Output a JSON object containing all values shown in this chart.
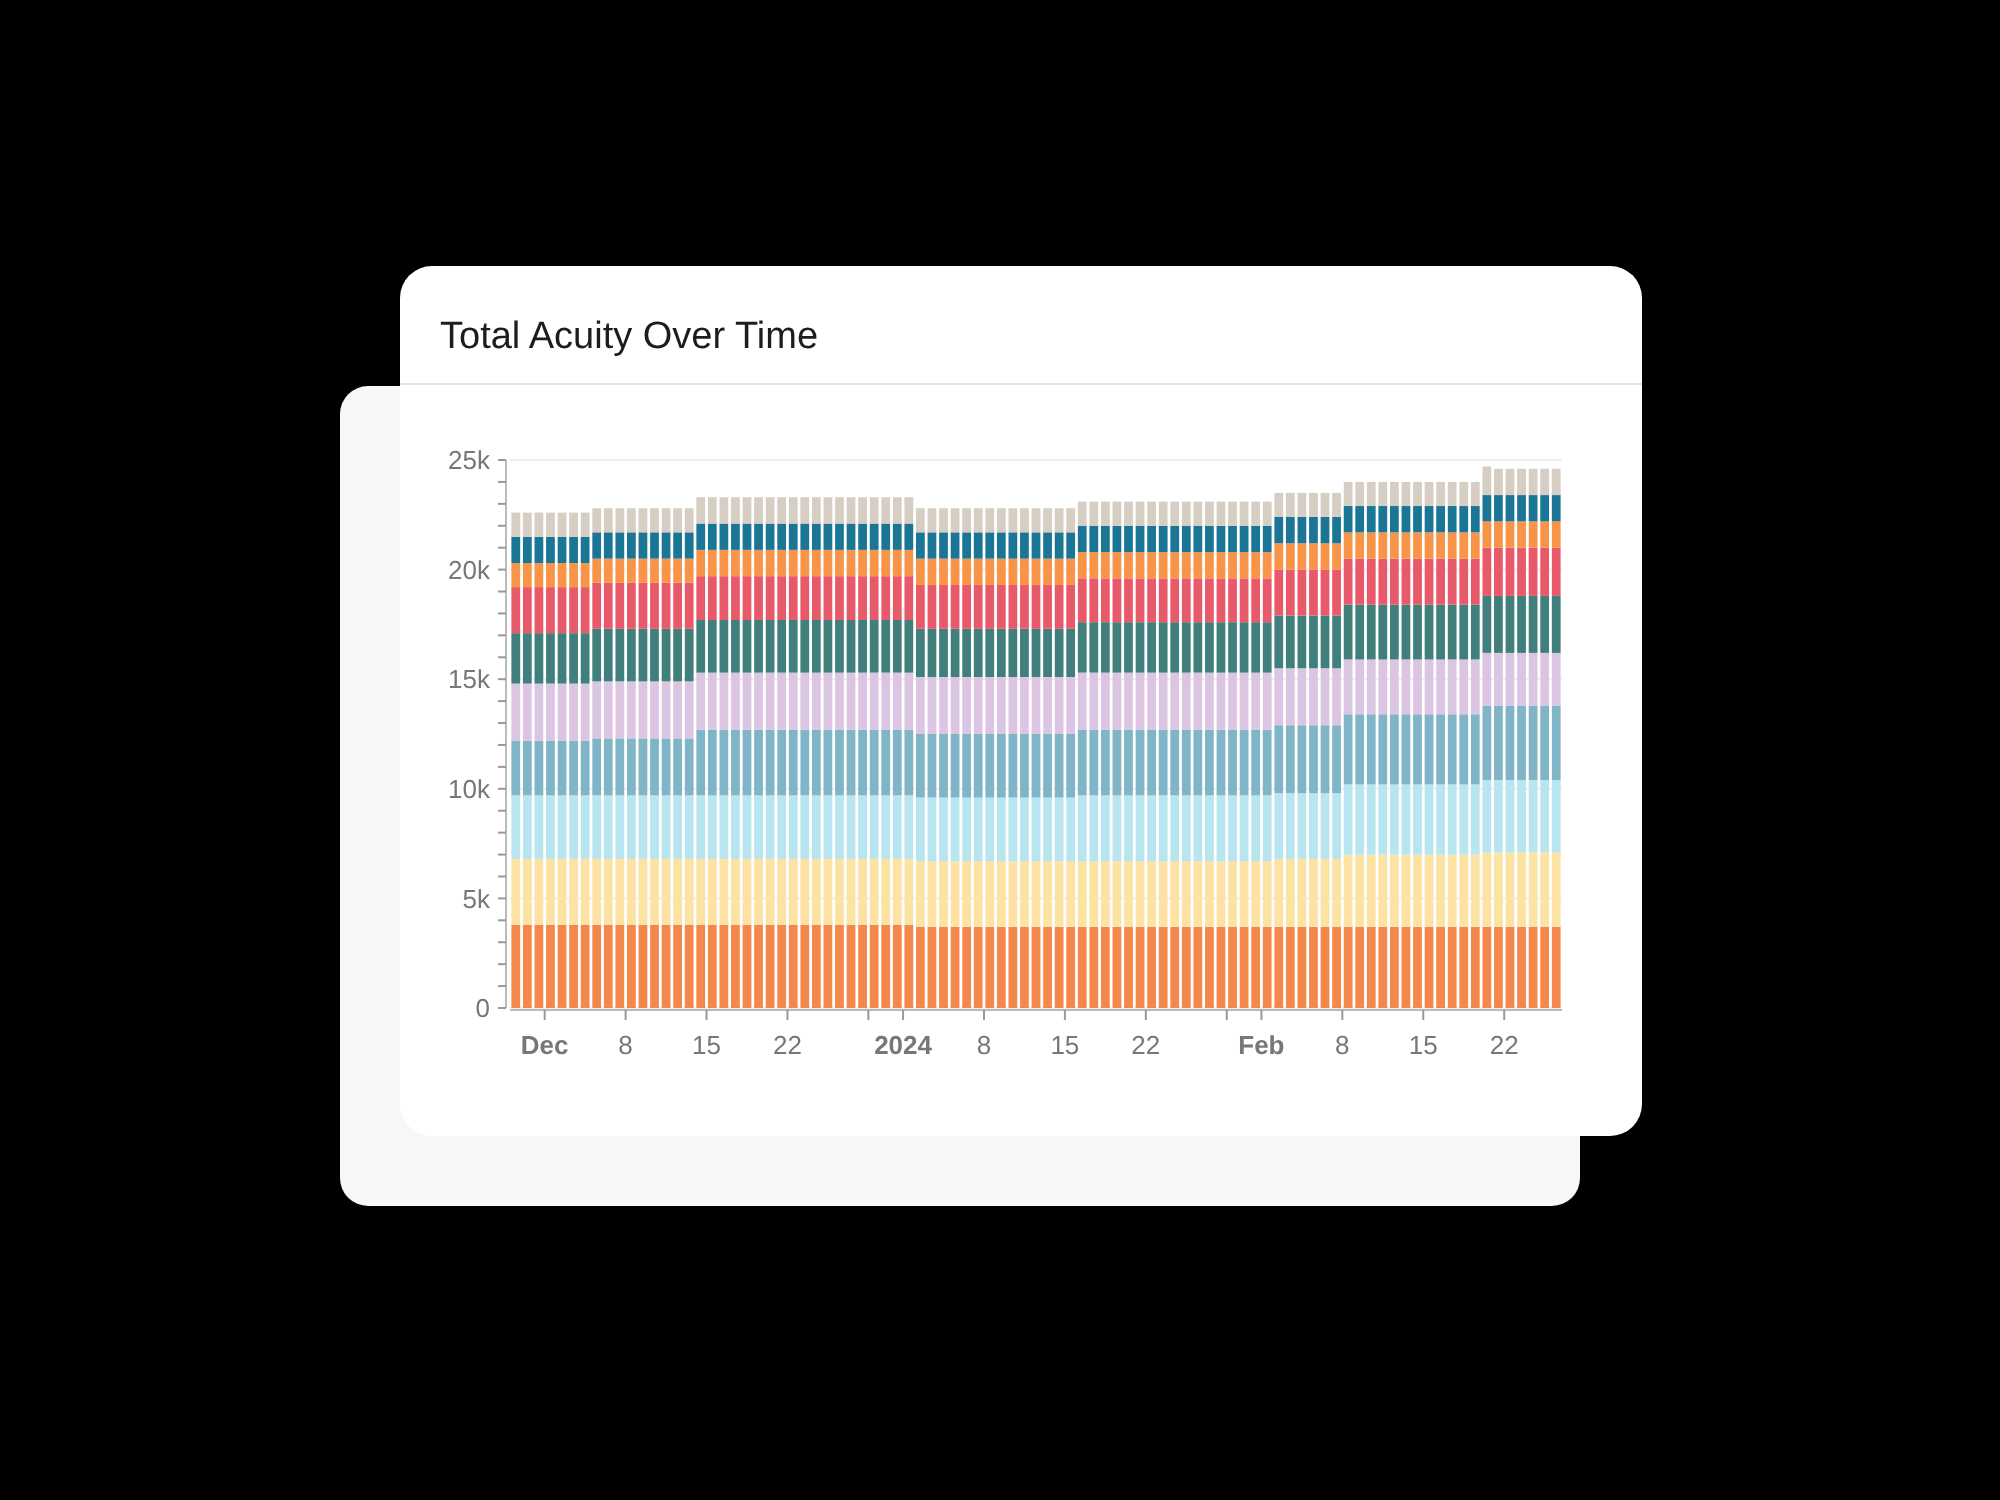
{
  "chart_data": {
    "type": "bar",
    "stacked": true,
    "title": "Total Acuity Over Time",
    "x": [
      "2023-11-28",
      "2023-11-29",
      "2023-11-30",
      "2023-12-01",
      "2023-12-02",
      "2023-12-03",
      "2023-12-04",
      "2023-12-05",
      "2023-12-06",
      "2023-12-07",
      "2023-12-08",
      "2023-12-09",
      "2023-12-10",
      "2023-12-11",
      "2023-12-12",
      "2023-12-13",
      "2023-12-14",
      "2023-12-15",
      "2023-12-16",
      "2023-12-17",
      "2023-12-18",
      "2023-12-19",
      "2023-12-20",
      "2023-12-21",
      "2023-12-22",
      "2023-12-23",
      "2023-12-24",
      "2023-12-25",
      "2023-12-26",
      "2023-12-27",
      "2023-12-28",
      "2023-12-29",
      "2023-12-30",
      "2023-12-31",
      "2024-01-01",
      "2024-01-02",
      "2024-01-03",
      "2024-01-04",
      "2024-01-05",
      "2024-01-06",
      "2024-01-07",
      "2024-01-08",
      "2024-01-09",
      "2024-01-10",
      "2024-01-11",
      "2024-01-12",
      "2024-01-13",
      "2024-01-14",
      "2024-01-15",
      "2024-01-16",
      "2024-01-17",
      "2024-01-18",
      "2024-01-19",
      "2024-01-20",
      "2024-01-21",
      "2024-01-22",
      "2024-01-23",
      "2024-01-24",
      "2024-01-25",
      "2024-01-26",
      "2024-01-27",
      "2024-01-28",
      "2024-01-29",
      "2024-01-30",
      "2024-01-31",
      "2024-02-01",
      "2024-02-02",
      "2024-02-03",
      "2024-02-04",
      "2024-02-05",
      "2024-02-06",
      "2024-02-07",
      "2024-02-08",
      "2024-02-09",
      "2024-02-10",
      "2024-02-11",
      "2024-02-12",
      "2024-02-13",
      "2024-02-14",
      "2024-02-15",
      "2024-02-16",
      "2024-02-17",
      "2024-02-18",
      "2024-02-19",
      "2024-02-20",
      "2024-02-21",
      "2024-02-22",
      "2024-02-23",
      "2024-02-24",
      "2024-02-25",
      "2024-02-26"
    ],
    "series": [
      {
        "color": "#f4874b",
        "values": [
          3800,
          3800,
          3800,
          3800,
          3800,
          3800,
          3800,
          3800,
          3800,
          3800,
          3800,
          3800,
          3800,
          3800,
          3800,
          3800,
          3800,
          3800,
          3800,
          3800,
          3800,
          3800,
          3800,
          3800,
          3800,
          3800,
          3800,
          3800,
          3800,
          3800,
          3800,
          3800,
          3800,
          3800,
          3800,
          3700,
          3700,
          3700,
          3700,
          3700,
          3700,
          3700,
          3700,
          3700,
          3700,
          3700,
          3700,
          3700,
          3700,
          3700,
          3700,
          3700,
          3700,
          3700,
          3700,
          3700,
          3700,
          3700,
          3700,
          3700,
          3700,
          3700,
          3700,
          3700,
          3700,
          3700,
          3700,
          3700,
          3700,
          3700,
          3700,
          3700,
          3700,
          3700,
          3700,
          3700,
          3700,
          3700,
          3700,
          3700,
          3700,
          3700,
          3700,
          3700,
          3700,
          3700,
          3700,
          3700,
          3700,
          3700,
          3700
        ]
      },
      {
        "color": "#fce3a4",
        "values": [
          3000,
          3000,
          3000,
          3000,
          3000,
          3000,
          3000,
          3000,
          3000,
          3000,
          3000,
          3000,
          3000,
          3000,
          3000,
          3000,
          3000,
          3000,
          3000,
          3000,
          3000,
          3000,
          3000,
          3000,
          3000,
          3000,
          3000,
          3000,
          3000,
          3000,
          3000,
          3000,
          3000,
          3000,
          3000,
          3000,
          3000,
          3000,
          3000,
          3000,
          3000,
          3000,
          3000,
          3000,
          3000,
          3000,
          3000,
          3000,
          3000,
          3000,
          3000,
          3000,
          3000,
          3000,
          3000,
          3000,
          3000,
          3000,
          3000,
          3000,
          3000,
          3000,
          3000,
          3000,
          3000,
          3000,
          3100,
          3100,
          3100,
          3100,
          3100,
          3100,
          3300,
          3300,
          3300,
          3300,
          3300,
          3300,
          3300,
          3300,
          3300,
          3300,
          3300,
          3300,
          3400,
          3400,
          3400,
          3400,
          3400,
          3400,
          3400
        ]
      },
      {
        "color": "#b7e5f0",
        "values": [
          2900,
          2900,
          2900,
          2900,
          2900,
          2900,
          2900,
          2900,
          2900,
          2900,
          2900,
          2900,
          2900,
          2900,
          2900,
          2900,
          2900,
          2900,
          2900,
          2900,
          2900,
          2900,
          2900,
          2900,
          2900,
          2900,
          2900,
          2900,
          2900,
          2900,
          2900,
          2900,
          2900,
          2900,
          2900,
          2900,
          2900,
          2900,
          2900,
          2900,
          2900,
          2900,
          2900,
          2900,
          2900,
          2900,
          2900,
          2900,
          2900,
          3000,
          3000,
          3000,
          3000,
          3000,
          3000,
          3000,
          3000,
          3000,
          3000,
          3000,
          3000,
          3000,
          3000,
          3000,
          3000,
          3000,
          3000,
          3000,
          3000,
          3000,
          3000,
          3000,
          3200,
          3200,
          3200,
          3200,
          3200,
          3200,
          3200,
          3200,
          3200,
          3200,
          3200,
          3200,
          3300,
          3300,
          3300,
          3300,
          3300,
          3300,
          3300
        ]
      },
      {
        "color": "#7fb5c6",
        "values": [
          2500,
          2500,
          2500,
          2500,
          2500,
          2500,
          2500,
          2600,
          2600,
          2600,
          2600,
          2600,
          2600,
          2600,
          2600,
          2600,
          3000,
          3000,
          3000,
          3000,
          3000,
          3000,
          3000,
          3000,
          3000,
          3000,
          3000,
          3000,
          3000,
          3000,
          3000,
          3000,
          3000,
          3000,
          3000,
          2900,
          2900,
          2900,
          2900,
          2900,
          2900,
          2900,
          2900,
          2900,
          2900,
          2900,
          2900,
          2900,
          2900,
          3000,
          3000,
          3000,
          3000,
          3000,
          3000,
          3000,
          3000,
          3000,
          3000,
          3000,
          3000,
          3000,
          3000,
          3000,
          3000,
          3000,
          3100,
          3100,
          3100,
          3100,
          3100,
          3100,
          3200,
          3200,
          3200,
          3200,
          3200,
          3200,
          3200,
          3200,
          3200,
          3200,
          3200,
          3200,
          3400,
          3400,
          3400,
          3400,
          3400,
          3400,
          3400
        ]
      },
      {
        "color": "#dcc5e2",
        "values": [
          2600,
          2600,
          2600,
          2600,
          2600,
          2600,
          2600,
          2600,
          2600,
          2600,
          2600,
          2600,
          2600,
          2600,
          2600,
          2600,
          2600,
          2600,
          2600,
          2600,
          2600,
          2600,
          2600,
          2600,
          2600,
          2600,
          2600,
          2600,
          2600,
          2600,
          2600,
          2600,
          2600,
          2600,
          2600,
          2600,
          2600,
          2600,
          2600,
          2600,
          2600,
          2600,
          2600,
          2600,
          2600,
          2600,
          2600,
          2600,
          2600,
          2600,
          2600,
          2600,
          2600,
          2600,
          2600,
          2600,
          2600,
          2600,
          2600,
          2600,
          2600,
          2600,
          2600,
          2600,
          2600,
          2600,
          2600,
          2600,
          2600,
          2600,
          2600,
          2600,
          2500,
          2500,
          2500,
          2500,
          2500,
          2500,
          2500,
          2500,
          2500,
          2500,
          2500,
          2500,
          2400,
          2400,
          2400,
          2400,
          2400,
          2400,
          2400
        ]
      },
      {
        "color": "#3f7f7c",
        "values": [
          2300,
          2300,
          2300,
          2300,
          2300,
          2300,
          2300,
          2400,
          2400,
          2400,
          2400,
          2400,
          2400,
          2400,
          2400,
          2400,
          2400,
          2400,
          2400,
          2400,
          2400,
          2400,
          2400,
          2400,
          2400,
          2400,
          2400,
          2400,
          2400,
          2400,
          2400,
          2400,
          2400,
          2400,
          2400,
          2200,
          2200,
          2200,
          2200,
          2200,
          2200,
          2200,
          2200,
          2200,
          2200,
          2200,
          2200,
          2200,
          2200,
          2300,
          2300,
          2300,
          2300,
          2300,
          2300,
          2300,
          2300,
          2300,
          2300,
          2300,
          2300,
          2300,
          2300,
          2300,
          2300,
          2300,
          2400,
          2400,
          2400,
          2400,
          2400,
          2400,
          2500,
          2500,
          2500,
          2500,
          2500,
          2500,
          2500,
          2500,
          2500,
          2500,
          2500,
          2500,
          2600,
          2600,
          2600,
          2600,
          2600,
          2600,
          2600
        ]
      },
      {
        "color": "#e8596a",
        "values": [
          2100,
          2100,
          2100,
          2100,
          2100,
          2100,
          2100,
          2100,
          2100,
          2100,
          2100,
          2100,
          2100,
          2100,
          2100,
          2100,
          2000,
          2000,
          2000,
          2000,
          2000,
          2000,
          2000,
          2000,
          2000,
          2000,
          2000,
          2000,
          2000,
          2000,
          2000,
          2000,
          2000,
          2000,
          2000,
          2000,
          2000,
          2000,
          2000,
          2000,
          2000,
          2000,
          2000,
          2000,
          2000,
          2000,
          2000,
          2000,
          2000,
          2000,
          2000,
          2000,
          2000,
          2000,
          2000,
          2000,
          2000,
          2000,
          2000,
          2000,
          2000,
          2000,
          2000,
          2000,
          2000,
          2000,
          2100,
          2100,
          2100,
          2100,
          2100,
          2100,
          2100,
          2100,
          2100,
          2100,
          2100,
          2100,
          2100,
          2100,
          2100,
          2100,
          2100,
          2100,
          2200,
          2200,
          2200,
          2200,
          2200,
          2200,
          2200
        ]
      },
      {
        "color": "#f79448",
        "values": [
          1100,
          1100,
          1100,
          1100,
          1100,
          1100,
          1100,
          1100,
          1100,
          1100,
          1100,
          1100,
          1100,
          1100,
          1100,
          1100,
          1200,
          1200,
          1200,
          1200,
          1200,
          1200,
          1200,
          1200,
          1200,
          1200,
          1200,
          1200,
          1200,
          1200,
          1200,
          1200,
          1200,
          1200,
          1200,
          1200,
          1200,
          1200,
          1200,
          1200,
          1200,
          1200,
          1200,
          1200,
          1200,
          1200,
          1200,
          1200,
          1200,
          1200,
          1200,
          1200,
          1200,
          1200,
          1200,
          1200,
          1200,
          1200,
          1200,
          1200,
          1200,
          1200,
          1200,
          1200,
          1200,
          1200,
          1200,
          1200,
          1200,
          1200,
          1200,
          1200,
          1200,
          1200,
          1200,
          1200,
          1200,
          1200,
          1200,
          1200,
          1200,
          1200,
          1200,
          1200,
          1200,
          1200,
          1200,
          1200,
          1200,
          1200,
          1200
        ]
      },
      {
        "color": "#1b7596",
        "values": [
          1200,
          1200,
          1200,
          1200,
          1200,
          1200,
          1200,
          1200,
          1200,
          1200,
          1200,
          1200,
          1200,
          1200,
          1200,
          1200,
          1200,
          1200,
          1200,
          1200,
          1200,
          1200,
          1200,
          1200,
          1200,
          1200,
          1200,
          1200,
          1200,
          1200,
          1200,
          1200,
          1200,
          1200,
          1200,
          1200,
          1200,
          1200,
          1200,
          1200,
          1200,
          1200,
          1200,
          1200,
          1200,
          1200,
          1200,
          1200,
          1200,
          1200,
          1200,
          1200,
          1200,
          1200,
          1200,
          1200,
          1200,
          1200,
          1200,
          1200,
          1200,
          1200,
          1200,
          1200,
          1200,
          1200,
          1200,
          1200,
          1200,
          1200,
          1200,
          1200,
          1200,
          1200,
          1200,
          1200,
          1200,
          1200,
          1200,
          1200,
          1200,
          1200,
          1200,
          1200,
          1200,
          1200,
          1200,
          1200,
          1200,
          1200,
          1200
        ]
      },
      {
        "color": "#d6cdc3",
        "values": [
          1100,
          1100,
          1100,
          1100,
          1100,
          1100,
          1100,
          1100,
          1100,
          1100,
          1100,
          1100,
          1100,
          1100,
          1100,
          1100,
          1200,
          1200,
          1200,
          1200,
          1200,
          1200,
          1200,
          1200,
          1200,
          1200,
          1200,
          1200,
          1200,
          1200,
          1200,
          1200,
          1200,
          1200,
          1200,
          1100,
          1100,
          1100,
          1100,
          1100,
          1100,
          1100,
          1100,
          1100,
          1100,
          1100,
          1100,
          1100,
          1100,
          1100,
          1100,
          1100,
          1100,
          1100,
          1100,
          1100,
          1100,
          1100,
          1100,
          1100,
          1100,
          1100,
          1100,
          1100,
          1100,
          1100,
          1100,
          1100,
          1100,
          1100,
          1100,
          1100,
          1100,
          1100,
          1100,
          1100,
          1100,
          1100,
          1100,
          1100,
          1100,
          1100,
          1100,
          1100,
          1300,
          1200,
          1200,
          1200,
          1200,
          1200,
          1200
        ]
      }
    ],
    "xlim": [
      "2023-11-28",
      "2024-02-27"
    ],
    "xticks": [
      {
        "value": "2023-12-01",
        "label": "Dec"
      },
      {
        "value": "2023-12-08",
        "label": "8"
      },
      {
        "value": "2023-12-15",
        "label": "15"
      },
      {
        "value": "2023-12-22",
        "label": "22"
      },
      {
        "value": "2023-12-29",
        "label": null
      },
      {
        "value": "2024-01-01",
        "label": "2024"
      },
      {
        "value": "2024-01-08",
        "label": "8"
      },
      {
        "value": "2024-01-15",
        "label": "15"
      },
      {
        "value": "2024-01-22",
        "label": "22"
      },
      {
        "value": "2024-01-29",
        "label": null
      },
      {
        "value": "2024-02-01",
        "label": "Feb"
      },
      {
        "value": "2024-02-08",
        "label": "8"
      },
      {
        "value": "2024-02-15",
        "label": "15"
      },
      {
        "value": "2024-02-22",
        "label": "22"
      }
    ],
    "ylim": [
      0,
      25000
    ],
    "yticks": [
      0,
      {
        "value": 1000,
        "label": null
      },
      {
        "value": 2000,
        "label": null
      },
      {
        "value": 3000,
        "label": null
      },
      {
        "value": 4000,
        "label": null
      },
      {
        "value": 5000,
        "label": "5k"
      },
      {
        "value": 6000,
        "label": null
      },
      {
        "value": 7000,
        "label": null
      },
      {
        "value": 8000,
        "label": null
      },
      {
        "value": 9000,
        "label": null
      },
      {
        "value": 10000,
        "label": "10k"
      },
      {
        "value": 11000,
        "label": null
      },
      {
        "value": 12000,
        "label": null
      },
      {
        "value": 13000,
        "label": null
      },
      {
        "value": 14000,
        "label": null
      },
      {
        "value": 15000,
        "label": "15k"
      },
      {
        "value": 16000,
        "label": null
      },
      {
        "value": 17000,
        "label": null
      },
      {
        "value": 18000,
        "label": null
      },
      {
        "value": 19000,
        "label": null
      },
      {
        "value": 20000,
        "label": "20k"
      },
      {
        "value": 21000,
        "label": null
      },
      {
        "value": 22000,
        "label": null
      },
      {
        "value": 23000,
        "label": null
      },
      {
        "value": 24000,
        "label": null
      },
      {
        "value": 25000,
        "label": "25k"
      }
    ],
    "grid": "y"
  }
}
